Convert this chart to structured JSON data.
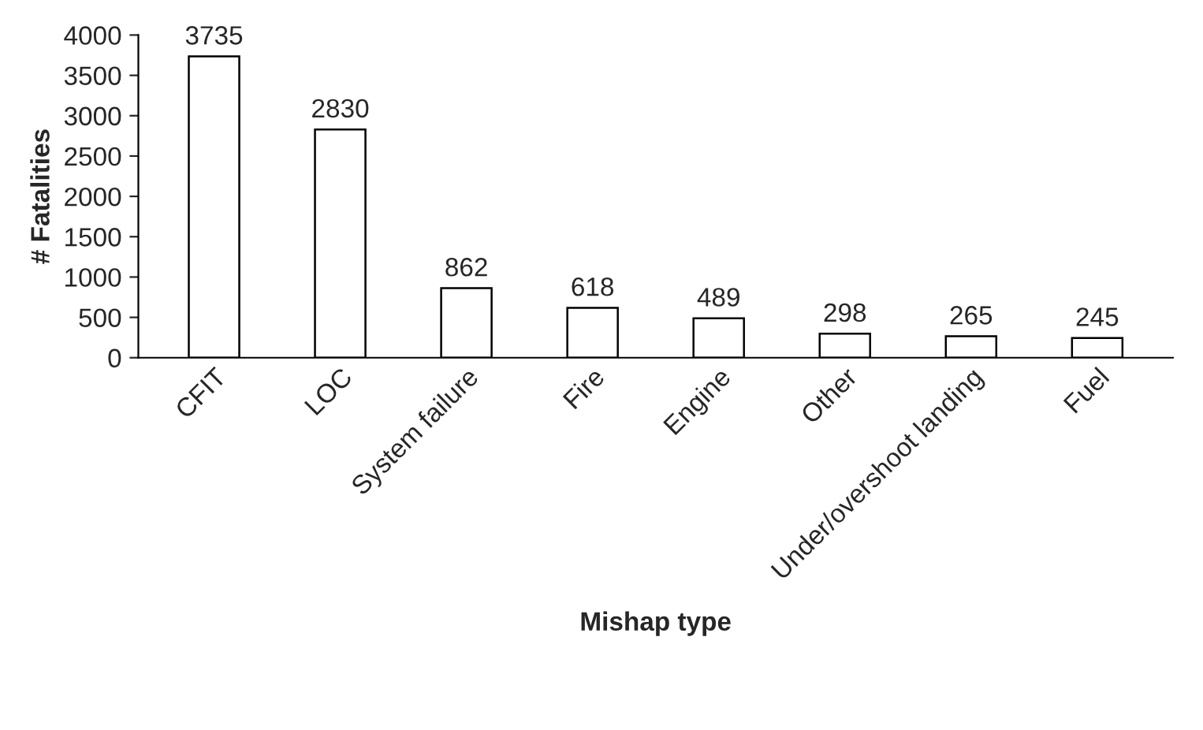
{
  "chart_data": {
    "type": "bar",
    "categories": [
      "CFIT",
      "LOC",
      "System failure",
      "Fire",
      "Engine",
      "Other",
      "Under/overshoot landing",
      "Fuel"
    ],
    "values": [
      3735,
      2830,
      862,
      618,
      489,
      298,
      265,
      245
    ],
    "color": "#ffffff",
    "xlabel": "Mishap type",
    "ylabel": "# Fatalities",
    "ylim": [
      0,
      4000
    ],
    "yticks": [
      0,
      500,
      1000,
      1500,
      2000,
      2500,
      3000,
      3500,
      4000
    ],
    "data_labels": true,
    "grid": false,
    "legend": false
  }
}
